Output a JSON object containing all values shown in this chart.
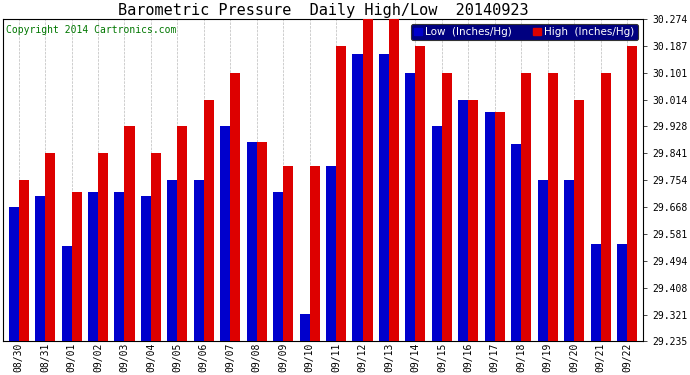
{
  "title": "Barometric Pressure  Daily High/Low  20140923",
  "copyright": "Copyright 2014 Cartronics.com",
  "legend_low": "Low  (Inches/Hg)",
  "legend_high": "High  (Inches/Hg)",
  "dates": [
    "08/30",
    "08/31",
    "09/01",
    "09/02",
    "09/03",
    "09/04",
    "09/05",
    "09/06",
    "09/07",
    "09/08",
    "09/09",
    "09/10",
    "09/11",
    "09/12",
    "09/13",
    "09/14",
    "09/15",
    "09/16",
    "09/17",
    "09/18",
    "09/19",
    "09/20",
    "09/21",
    "09/22"
  ],
  "low_values": [
    29.668,
    29.705,
    29.543,
    29.718,
    29.718,
    29.705,
    29.754,
    29.754,
    29.928,
    29.878,
    29.718,
    29.325,
    29.8,
    30.16,
    30.16,
    30.101,
    29.928,
    30.014,
    29.975,
    29.87,
    29.754,
    29.754,
    29.55,
    29.55
  ],
  "high_values": [
    29.754,
    29.841,
    29.718,
    29.841,
    29.928,
    29.841,
    29.928,
    30.014,
    30.101,
    29.878,
    29.8,
    29.8,
    30.187,
    30.274,
    30.274,
    30.187,
    30.101,
    30.014,
    29.975,
    30.101,
    30.101,
    30.014,
    30.101,
    30.187
  ],
  "ylim_min": 29.235,
  "ylim_max": 30.274,
  "yticks": [
    29.235,
    29.321,
    29.408,
    29.494,
    29.581,
    29.668,
    29.754,
    29.841,
    29.928,
    30.014,
    30.101,
    30.187,
    30.274
  ],
  "bar_width": 0.38,
  "low_color": "#0000cc",
  "high_color": "#dd0000",
  "bg_color": "#ffffff",
  "grid_color": "#bbbbbb",
  "title_fontsize": 11,
  "copyright_fontsize": 7,
  "tick_fontsize": 7,
  "legend_fontsize": 7.5
}
